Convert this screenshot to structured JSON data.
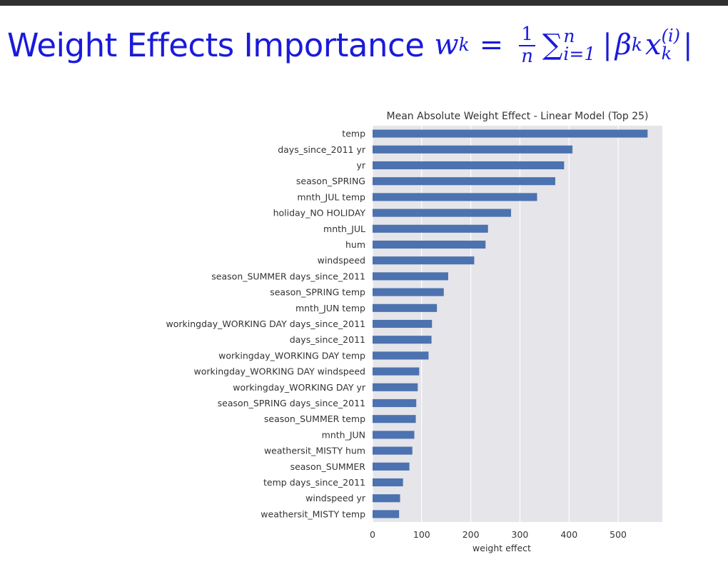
{
  "slide": {
    "title": "Weight Effects Importance",
    "formula": {
      "lhs": "w",
      "lhs_sub": "k",
      "equals": "=",
      "frac_num": "1",
      "frac_den": "n",
      "sum_symbol": "∑",
      "sum_upper": "n",
      "sum_lower": "i=1",
      "abs_left": "|",
      "beta": "β",
      "beta_sub": "k",
      "x": "x",
      "x_sup": "(i)",
      "x_sub": "k",
      "abs_right": "|"
    }
  },
  "colors": {
    "title": "#1a1adb",
    "bar": "#4c72b0",
    "plot_bg": "#e5e5ea",
    "grid": "#ffffff",
    "top_bar": "#303030"
  },
  "chart_data": {
    "type": "bar",
    "orientation": "horizontal",
    "title": "Mean Absolute Weight Effect - Linear Model (Top 25)",
    "xlabel": "weight effect",
    "ylabel": "",
    "xlim": [
      0,
      590
    ],
    "xticks": [
      0,
      100,
      200,
      300,
      400,
      500
    ],
    "grid": true,
    "categories": [
      "temp",
      "days_since_2011 yr",
      "yr",
      "season_SPRING",
      "mnth_JUL temp",
      "holiday_NO HOLIDAY",
      "mnth_JUL",
      "hum",
      "windspeed",
      "season_SUMMER days_since_2011",
      "season_SPRING temp",
      "mnth_JUN temp",
      "workingday_WORKING DAY days_since_2011",
      "days_since_2011",
      "workingday_WORKING DAY temp",
      "workingday_WORKING DAY windspeed",
      "workingday_WORKING DAY yr",
      "season_SPRING days_since_2011",
      "season_SUMMER temp",
      "mnth_JUN",
      "weathersit_MISTY hum",
      "season_SUMMER",
      "temp days_since_2011",
      "windspeed yr",
      "weathersit_MISTY temp"
    ],
    "values": [
      560,
      407,
      390,
      372,
      335,
      282,
      235,
      230,
      207,
      154,
      145,
      131,
      121,
      120,
      114,
      95,
      92,
      89,
      88,
      85,
      81,
      75,
      62,
      56,
      54
    ]
  }
}
